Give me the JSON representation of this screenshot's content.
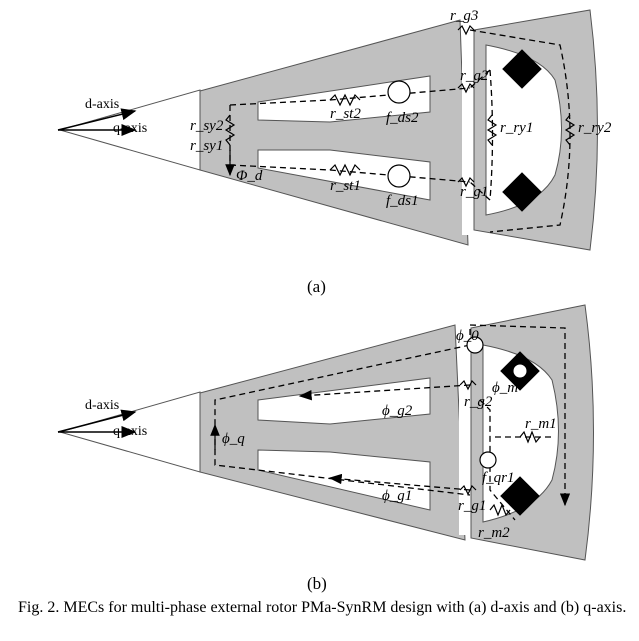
{
  "figure": {
    "panel_a": {
      "label": "(a)",
      "axes": {
        "d": "d-axis",
        "q": "q-axis"
      },
      "labels": {
        "rsy2": "r_sy2",
        "rsy1": "r_sy1",
        "phid": "Φ_d",
        "rst2": "r_st2",
        "rst1": "r_st1",
        "fds2": "f_ds2",
        "fds1": "f_ds1",
        "rg3": "r_g3",
        "rg2": "r_g2",
        "rg1": "r_g1",
        "rry1": "r_ry1",
        "rry2": "r_ry2"
      }
    },
    "panel_b": {
      "label": "(b)",
      "axes": {
        "d": "d-axis",
        "q": "q-axis"
      },
      "labels": {
        "phiq": "ϕ_q",
        "phig2": "ϕ_g2",
        "phig1": "ϕ_g1",
        "phi0": "ϕ_0",
        "phim": "ϕ_m",
        "rg2": "r_g2",
        "rg1": "r_g1",
        "rm1": "r_m1",
        "rm2": "r_m2",
        "fqr1": "f_qr1"
      }
    }
  },
  "caption": "Fig. 2.  MECs for multi-phase external rotor PMa-SynRM design with (a) d-axis and (b) q-axis."
}
